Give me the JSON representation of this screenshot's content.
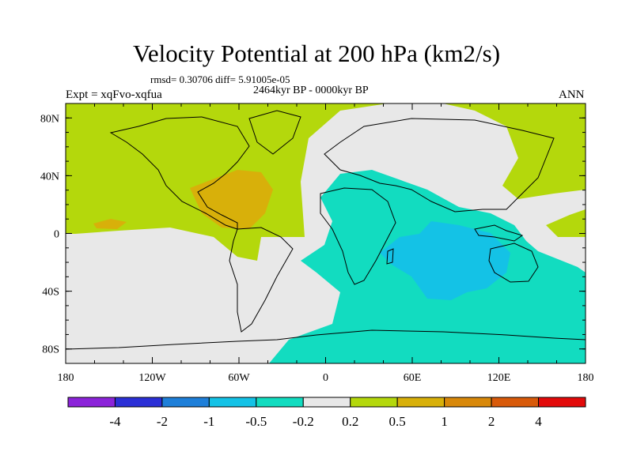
{
  "title": "Velocity Potential at 200 hPa (km2/s)",
  "stats_line": "rmsd= 0.30706 diff= 5.91005e-05",
  "subtitle": "2464kyr BP - 0000kyr BP",
  "left_label": "Expt = xqFvo-xqfua",
  "right_label": "ANN",
  "map": {
    "lon_range": [
      -180,
      180
    ],
    "lat_range": [
      -90,
      90
    ],
    "lon_ticks": [
      {
        "value": -180,
        "label": "180"
      },
      {
        "value": -120,
        "label": "120W"
      },
      {
        "value": -60,
        "label": "60W"
      },
      {
        "value": 0,
        "label": "0"
      },
      {
        "value": 60,
        "label": "60E"
      },
      {
        "value": 120,
        "label": "120E"
      },
      {
        "value": 180,
        "label": "180"
      }
    ],
    "lat_ticks": [
      {
        "value": 80,
        "label": "80N"
      },
      {
        "value": 40,
        "label": "40N"
      },
      {
        "value": 0,
        "label": "0"
      },
      {
        "value": -40,
        "label": "40S"
      },
      {
        "value": -80,
        "label": "80S"
      }
    ],
    "minor_lon_step": 20,
    "minor_lat_step": 10
  },
  "colorbar": {
    "colors": [
      "#8b23d9",
      "#2b2fd6",
      "#1e7fd9",
      "#14c2e6",
      "#12dcc0",
      "#e8e8e8",
      "#b4d80c",
      "#d8b00a",
      "#d8880a",
      "#d85a0a",
      "#e20a0a"
    ],
    "labels": [
      "-4",
      "-2",
      "-1",
      "-0.5",
      "-0.2",
      "0.2",
      "0.5",
      "1",
      "2",
      "4"
    ]
  },
  "fields": {
    "neutral": "#e8e8e8",
    "positive_weak": "#b4d80c",
    "positive_mid": "#d8b00a",
    "negative_weak": "#12dcc0",
    "negative_mid": "#14c2e6"
  }
}
